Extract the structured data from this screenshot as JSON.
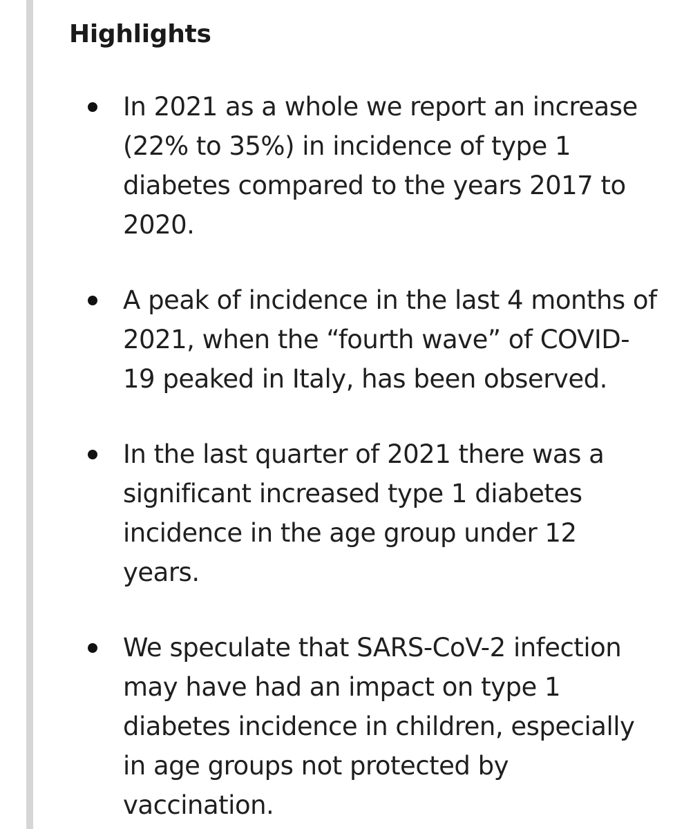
{
  "highlights": {
    "heading": "Highlights",
    "items": [
      {
        "text": "In 2021 as a whole we report an increase (22% to 35%) in incidence of type 1 diabetes compared to the years 2017 to 2020."
      },
      {
        "text": "A peak of incidence in the last 4 months of 2021, when the “fourth wave” of COVID-19 peaked in Italy, has been observed."
      },
      {
        "text": "In the last quarter of 2021 there was a significant increased type 1 diabetes incidence in the age group under 12 years."
      },
      {
        "text": "We speculate that SARS-CoV-2 infection may have had an impact on type 1 diabetes incidence in children, especially in age groups not protected by vaccination."
      }
    ]
  }
}
